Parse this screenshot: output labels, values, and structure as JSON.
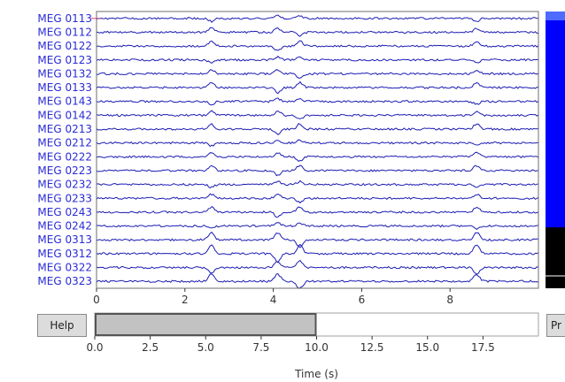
{
  "channels": [
    "MEG 0113",
    "MEG 0112",
    "MEG 0122",
    "MEG 0123",
    "MEG 0132",
    "MEG 0133",
    "MEG 0143",
    "MEG 0142",
    "MEG 0213",
    "MEG 0212",
    "MEG 0222",
    "MEG 0223",
    "MEG 0232",
    "MEG 0233",
    "MEG 0243",
    "MEG 0242",
    "MEG 0313",
    "MEG 0312",
    "MEG 0322",
    "MEG 0323"
  ],
  "highlighted_channel_index": 0,
  "trace_color": "#1c1cb4",
  "highlight_color": "#e0407a",
  "plot": {
    "x_ticks": [
      "0",
      "2",
      "4",
      "6",
      "8"
    ],
    "x_tick_values": [
      0,
      2,
      4,
      6,
      8
    ],
    "x_range": [
      0,
      10
    ],
    "events_seconds": [
      2.6,
      4.1,
      4.6,
      8.6
    ]
  },
  "scrollbar": {
    "channel_window_fraction": 0.22
  },
  "time_scrollbar": {
    "x_range": [
      0,
      20
    ],
    "window": [
      0,
      10
    ],
    "x_ticks": [
      "0.0",
      "2.5",
      "5.0",
      "7.5",
      "10.0",
      "12.5",
      "15.0",
      "17.5"
    ],
    "x_tick_values": [
      0,
      2.5,
      5,
      7.5,
      10,
      12.5,
      15,
      17.5
    ],
    "xlabel": "Time (s)"
  },
  "buttons": {
    "help": "Help",
    "proj": "Pr"
  }
}
